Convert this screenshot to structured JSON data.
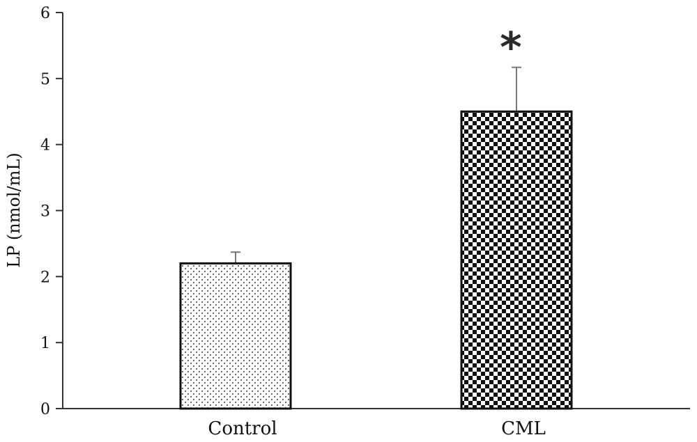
{
  "chart_data": {
    "type": "bar",
    "title": "",
    "xlabel": "",
    "ylabel": "LP (nmol/mL)",
    "ylim": [
      0,
      6
    ],
    "yticks": [
      0,
      1,
      2,
      3,
      4,
      5,
      6
    ],
    "categories": [
      "Control",
      "CML"
    ],
    "values": [
      2.2,
      4.5
    ],
    "errors": [
      0.17,
      0.67
    ],
    "bar_patterns": [
      "dots",
      "checker"
    ],
    "annotations": [
      "",
      "*"
    ],
    "grid": false,
    "legend": "none"
  }
}
